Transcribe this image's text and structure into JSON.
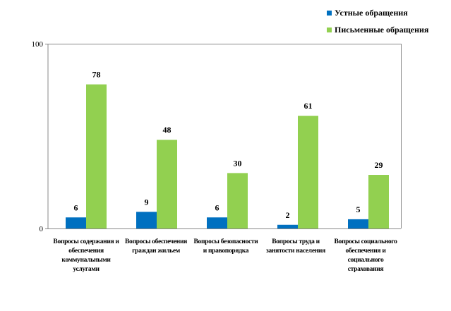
{
  "chart_data": {
    "type": "bar",
    "categories": [
      "Вопросы содержания и обеспечения коммунальными услугами",
      "Вопросы обеспечения граждан жильем",
      "Вопросы безопасности и правопорядка",
      "Вопросы труда и занятости населения",
      "Вопросы социального обеспечения и социального страхования"
    ],
    "series": [
      {
        "name": "Устные обращения",
        "values": [
          6,
          9,
          6,
          2,
          5
        ],
        "color": "#0070C0"
      },
      {
        "name": "Письменные обращения",
        "values": [
          78,
          48,
          30,
          61,
          29
        ],
        "color": "#92D050"
      }
    ],
    "ylim": [
      0,
      100
    ],
    "yticks": [
      "0",
      "100"
    ],
    "legend_position": "top-right",
    "grid": false,
    "data_labels": true
  }
}
